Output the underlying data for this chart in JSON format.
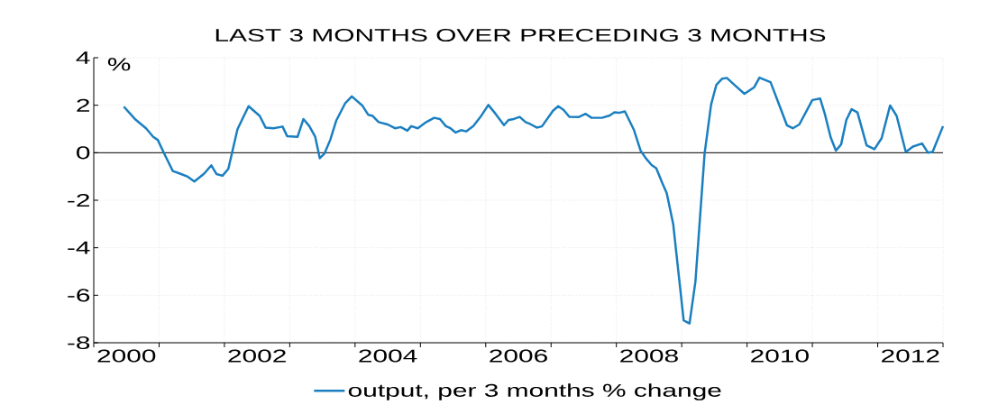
{
  "chart_data": {
    "type": "line",
    "title": "LAST 3 MONTHS OVER PRECEDING 3 MONTHS",
    "ylabel": "%",
    "xlim": [
      1999.5,
      2012.5
    ],
    "ylim": [
      -8,
      4
    ],
    "yticks": [
      -8,
      -6,
      -4,
      -2,
      0,
      2,
      4
    ],
    "xticks": [
      {
        "value": 1999.5,
        "label": null
      },
      2000,
      {
        "value": 2000.5,
        "label": null
      },
      {
        "value": 2001.5,
        "label": null
      },
      2002,
      {
        "value": 2002.5,
        "label": null
      },
      {
        "value": 2003.5,
        "label": null
      },
      2004,
      {
        "value": 2004.5,
        "label": null
      },
      {
        "value": 2005.5,
        "label": null
      },
      2006,
      {
        "value": 2006.5,
        "label": null
      },
      {
        "value": 2007.5,
        "label": null
      },
      2008,
      {
        "value": 2008.5,
        "label": null
      },
      {
        "value": 2009.5,
        "label": null
      },
      2010,
      {
        "value": 2010.5,
        "label": null
      },
      {
        "value": 2011.5,
        "label": null
      },
      2012,
      {
        "value": 2012.5,
        "label": null
      }
    ],
    "grid": true,
    "legend": "bottom",
    "marker": "none",
    "line_style": "solid",
    "ref_lines": [
      {
        "axis": "y",
        "value": 0,
        "color": "#000000"
      }
    ],
    "series": [
      {
        "name": "output, per 3 months % change",
        "color": "#1a7fc0",
        "x": [
          1999.96,
          2000.13,
          2000.3,
          2000.41,
          2000.48,
          2000.59,
          2000.71,
          2000.82,
          2000.94,
          2001.04,
          2001.19,
          2001.3,
          2001.38,
          2001.47,
          2001.56,
          2001.7,
          2001.87,
          2002.04,
          2002.13,
          2002.25,
          2002.39,
          2002.46,
          2002.62,
          2002.71,
          2002.8,
          2002.89,
          2002.96,
          2003.03,
          2003.12,
          2003.21,
          2003.35,
          2003.45,
          2003.61,
          2003.7,
          2003.77,
          2003.86,
          2004.0,
          2004.11,
          2004.2,
          2004.3,
          2004.36,
          2004.46,
          2004.59,
          2004.71,
          2004.8,
          2004.89,
          2004.96,
          2005.04,
          2005.12,
          2005.2,
          2005.31,
          2005.42,
          2005.54,
          2005.65,
          2005.78,
          2005.85,
          2005.93,
          2006.02,
          2006.11,
          2006.18,
          2006.28,
          2006.36,
          2006.53,
          2006.61,
          2006.69,
          2006.78,
          2006.92,
          2007.03,
          2007.12,
          2007.28,
          2007.4,
          2007.47,
          2007.54,
          2007.63,
          2007.77,
          2007.87,
          2007.95,
          2008.04,
          2008.11,
          2008.2,
          2008.27,
          2008.37,
          2008.46,
          2008.53,
          2008.62,
          2008.71,
          2008.85,
          2008.95,
          2009.03,
          2009.12,
          2009.19,
          2009.33,
          2009.46,
          2009.61,
          2009.69,
          2009.86,
          2010.0,
          2010.11,
          2010.2,
          2010.3,
          2010.5,
          2010.62,
          2010.69,
          2010.78,
          2010.86,
          2010.94,
          2011.02,
          2011.1,
          2011.19,
          2011.33,
          2011.45,
          2011.56,
          2011.69,
          2011.79,
          2011.93,
          2012.04,
          2012.18,
          2012.27,
          2012.34,
          2012.5
        ],
        "values": [
          1.94,
          1.42,
          1.03,
          0.67,
          0.54,
          -0.1,
          -0.77,
          -0.88,
          -1.01,
          -1.21,
          -0.88,
          -0.53,
          -0.9,
          -0.97,
          -0.68,
          0.99,
          1.96,
          1.55,
          1.06,
          1.03,
          1.1,
          0.7,
          0.67,
          1.42,
          1.12,
          0.67,
          -0.23,
          -0.04,
          0.54,
          1.34,
          2.09,
          2.37,
          1.99,
          1.6,
          1.55,
          1.29,
          1.19,
          1.03,
          1.08,
          0.93,
          1.12,
          1.03,
          1.29,
          1.47,
          1.42,
          1.12,
          1.03,
          0.85,
          0.95,
          0.9,
          1.12,
          1.51,
          2.01,
          1.64,
          1.16,
          1.38,
          1.42,
          1.51,
          1.29,
          1.21,
          1.06,
          1.11,
          1.77,
          1.96,
          1.81,
          1.51,
          1.5,
          1.64,
          1.47,
          1.47,
          1.57,
          1.7,
          1.68,
          1.74,
          0.95,
          0.09,
          -0.23,
          -0.52,
          -0.65,
          -1.26,
          -1.7,
          -3.01,
          -5.29,
          -7.06,
          -7.19,
          -5.42,
          -0.04,
          2.03,
          2.86,
          3.12,
          3.15,
          2.8,
          2.48,
          2.76,
          3.16,
          2.97,
          1.96,
          1.16,
          1.03,
          1.19,
          2.22,
          2.28,
          1.64,
          0.65,
          0.09,
          0.35,
          1.38,
          1.83,
          1.7,
          0.31,
          0.15,
          0.61,
          1.99,
          1.55,
          0.03,
          0.26,
          0.39,
          0.0,
          0.03,
          1.12
        ]
      }
    ]
  }
}
